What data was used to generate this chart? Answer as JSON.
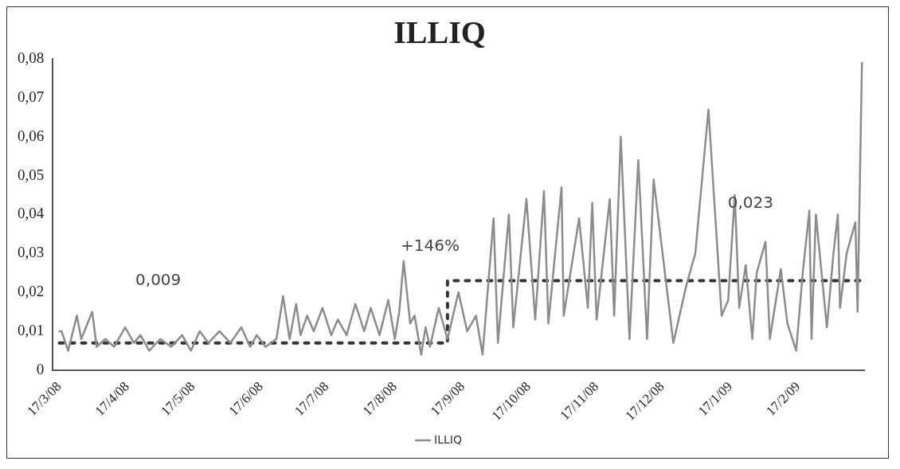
{
  "chart_data": {
    "type": "line",
    "title": "ILLIQ",
    "legend": "bottom",
    "grid": false,
    "marker": "none",
    "xlim": [
      "2008-03-14",
      "2009-03-19"
    ],
    "xticks": [
      {
        "value": "2008-03-17",
        "label": "17/3/08"
      },
      {
        "value": "2008-04-17",
        "label": "17/4/08"
      },
      {
        "value": "2008-05-17",
        "label": "17/5/08"
      },
      {
        "value": "2008-06-17",
        "label": "17/6/08"
      },
      {
        "value": "2008-07-17",
        "label": "17/7/08"
      },
      {
        "value": "2008-08-17",
        "label": "17/8/08"
      },
      {
        "value": "2008-09-17",
        "label": "17/9/08"
      },
      {
        "value": "2008-10-17",
        "label": "17/10/08"
      },
      {
        "value": "2008-11-17",
        "label": "17/11/08"
      },
      {
        "value": "2008-12-17",
        "label": "17/12/08"
      },
      {
        "value": "2009-01-17",
        "label": "17/1/09"
      },
      {
        "value": "2009-02-17",
        "label": "17/2/09"
      }
    ],
    "ylim": [
      0,
      0.08
    ],
    "yticks": [
      0,
      {
        "value": 0.01,
        "label": "0,01"
      },
      {
        "value": 0.02,
        "label": "0,02"
      },
      {
        "value": 0.03,
        "label": "0,03"
      },
      {
        "value": 0.04,
        "label": "0,04"
      },
      {
        "value": 0.05,
        "label": "0,05"
      },
      {
        "value": 0.06,
        "label": "0,06"
      },
      {
        "value": 0.07,
        "label": "0,07"
      },
      {
        "value": 0.08,
        "label": "0,08"
      }
    ],
    "annotations": [
      "0,009",
      "+146%",
      "0,023"
    ],
    "series": [
      {
        "name": "ILLIQ",
        "color": "#8c8c8c",
        "line_style": "solid",
        "x": [
          "2008-03-17",
          "2008-03-18",
          "2008-03-21",
          "2008-03-25",
          "2008-03-27",
          "2008-04-01",
          "2008-04-03",
          "2008-04-07",
          "2008-04-11",
          "2008-04-16",
          "2008-04-20",
          "2008-04-23",
          "2008-04-27",
          "2008-05-02",
          "2008-05-07",
          "2008-05-12",
          "2008-05-16",
          "2008-05-20",
          "2008-05-24",
          "2008-05-29",
          "2008-06-03",
          "2008-06-08",
          "2008-06-12",
          "2008-06-15",
          "2008-06-19",
          "2008-06-24",
          "2008-06-27",
          "2008-06-30",
          "2008-07-03",
          "2008-07-05",
          "2008-07-08",
          "2008-07-11",
          "2008-07-15",
          "2008-07-19",
          "2008-07-22",
          "2008-07-26",
          "2008-07-30",
          "2008-08-03",
          "2008-08-06",
          "2008-08-10",
          "2008-08-14",
          "2008-08-17",
          "2008-08-19",
          "2008-08-21",
          "2008-08-24",
          "2008-08-26",
          "2008-08-29",
          "2008-08-31",
          "2008-09-02",
          "2008-09-06",
          "2008-09-10",
          "2008-09-15",
          "2008-09-19",
          "2008-09-23",
          "2008-09-26",
          "2008-10-01",
          "2008-10-03",
          "2008-10-08",
          "2008-10-10",
          "2008-10-16",
          "2008-10-20",
          "2008-10-24",
          "2008-10-26",
          "2008-11-01",
          "2008-11-02",
          "2008-11-09",
          "2008-11-13",
          "2008-11-15",
          "2008-11-17",
          "2008-11-23",
          "2008-11-25",
          "2008-11-28",
          "2008-12-02",
          "2008-12-06",
          "2008-12-10",
          "2008-12-13",
          "2008-12-22",
          "2008-12-28",
          "2009-01-01",
          "2009-01-07",
          "2009-01-13",
          "2009-01-16",
          "2009-01-19",
          "2009-01-21",
          "2009-01-24",
          "2009-01-27",
          "2009-01-29",
          "2009-02-02",
          "2009-02-04",
          "2009-02-09",
          "2009-02-12",
          "2009-02-16",
          "2009-02-19",
          "2009-02-22",
          "2009-02-23",
          "2009-02-25",
          "2009-03-02",
          "2009-03-05",
          "2009-03-07",
          "2009-03-08",
          "2009-03-11",
          "2009-03-15",
          "2009-03-16",
          "2009-03-18"
        ],
        "values": [
          0.01,
          0.01,
          0.005,
          0.014,
          0.008,
          0.015,
          0.006,
          0.008,
          0.006,
          0.011,
          0.007,
          0.009,
          0.005,
          0.008,
          0.006,
          0.009,
          0.005,
          0.01,
          0.007,
          0.01,
          0.007,
          0.011,
          0.006,
          0.009,
          0.006,
          0.008,
          0.019,
          0.008,
          0.017,
          0.009,
          0.014,
          0.01,
          0.016,
          0.009,
          0.013,
          0.009,
          0.017,
          0.01,
          0.016,
          0.009,
          0.018,
          0.008,
          0.015,
          0.028,
          0.012,
          0.014,
          0.004,
          0.011,
          0.006,
          0.016,
          0.008,
          0.02,
          0.01,
          0.014,
          0.004,
          0.039,
          0.007,
          0.04,
          0.011,
          0.044,
          0.013,
          0.046,
          0.012,
          0.047,
          0.014,
          0.039,
          0.016,
          0.043,
          0.013,
          0.044,
          0.014,
          0.06,
          0.008,
          0.054,
          0.008,
          0.049,
          0.007,
          0.022,
          0.03,
          0.067,
          0.014,
          0.018,
          0.045,
          0.016,
          0.027,
          0.008,
          0.025,
          0.033,
          0.008,
          0.026,
          0.012,
          0.005,
          0.025,
          0.041,
          0.008,
          0.04,
          0.011,
          0.03,
          0.04,
          0.016,
          0.03,
          0.038,
          0.015,
          0.079
        ]
      },
      {
        "color": "#333333",
        "line_style": "dashed",
        "x": [
          "2008-03-17",
          "2008-09-10",
          "2008-09-10",
          "2009-03-18"
        ],
        "values": [
          0.007,
          0.007,
          0.023,
          0.023
        ]
      }
    ]
  }
}
